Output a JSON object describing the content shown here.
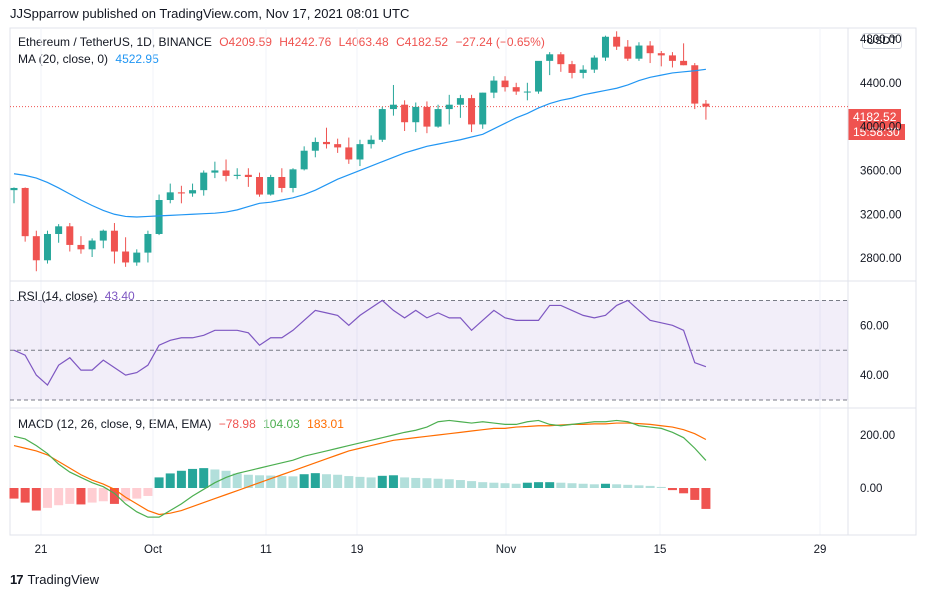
{
  "header": {
    "publisher": "JJSpparrow published on TradingView.com, Nov 17, 2021 08:01 UTC"
  },
  "legend": {
    "symbol": "Ethereum / TetherUS, 1D, BINANCE",
    "o": "O4209.59",
    "h": "H4242.76",
    "l": "L4063.48",
    "c": "C4182.52",
    "chg": "−27.24 (−0.65%)",
    "ma_label": "MA (20, close, 0)",
    "ma_value": "4522.95",
    "rsi_label": "RSI (14, close)",
    "rsi_value": "43.40",
    "macd_label": "MACD (12, 26, close, 9, EMA, EMA)",
    "macd_hist": "−78.98",
    "macd_line": "104.03",
    "macd_signal": "183.01"
  },
  "currency": "USDT",
  "price_tag": {
    "price": "4182.52",
    "countdown": "15:58:30"
  },
  "footer": {
    "brand": "TradingView",
    "logo": "17"
  },
  "colors": {
    "up": "#26a69a",
    "down": "#ef5350",
    "ma": "#2196f3",
    "rsi": "#7e57c2",
    "macd": "#4caf50",
    "signal": "#ff6d00"
  },
  "chart_data": [
    {
      "type": "candlestick",
      "title": "Ethereum / TetherUS, 1D, BINANCE",
      "x_ticks": [
        "21",
        "Oct",
        "11",
        "19",
        "Nov",
        "15",
        "29"
      ],
      "y_ticks": [
        "2800.00",
        "3200.00",
        "3600.00",
        "4000.00",
        "4400.00",
        "4800.00"
      ],
      "ylim": [
        2600,
        4900
      ],
      "ohlc": [
        [
          3420,
          3445,
          3300,
          3440
        ],
        [
          3440,
          3445,
          2950,
          3000
        ],
        [
          3000,
          3050,
          2680,
          2780
        ],
        [
          2780,
          3050,
          2750,
          3020
        ],
        [
          3020,
          3110,
          2940,
          3090
        ],
        [
          3090,
          3120,
          2860,
          2920
        ],
        [
          2920,
          3000,
          2840,
          2880
        ],
        [
          2880,
          2980,
          2810,
          2960
        ],
        [
          2960,
          3060,
          2890,
          3050
        ],
        [
          3050,
          3120,
          2750,
          2860
        ],
        [
          2860,
          2990,
          2720,
          2760
        ],
        [
          2760,
          2880,
          2730,
          2850
        ],
        [
          2850,
          3050,
          2760,
          3020
        ],
        [
          3020,
          3380,
          3010,
          3330
        ],
        [
          3330,
          3480,
          3300,
          3400
        ],
        [
          3400,
          3460,
          3300,
          3390
        ],
        [
          3390,
          3480,
          3360,
          3420
        ],
        [
          3420,
          3600,
          3370,
          3580
        ],
        [
          3580,
          3680,
          3530,
          3600
        ],
        [
          3600,
          3700,
          3500,
          3550
        ],
        [
          3550,
          3620,
          3520,
          3560
        ],
        [
          3560,
          3620,
          3450,
          3540
        ],
        [
          3540,
          3580,
          3360,
          3380
        ],
        [
          3380,
          3560,
          3370,
          3540
        ],
        [
          3540,
          3620,
          3400,
          3440
        ],
        [
          3440,
          3620,
          3400,
          3610
        ],
        [
          3610,
          3820,
          3600,
          3780
        ],
        [
          3780,
          3900,
          3720,
          3860
        ],
        [
          3860,
          3990,
          3800,
          3840
        ],
        [
          3840,
          3890,
          3760,
          3810
        ],
        [
          3810,
          3900,
          3660,
          3700
        ],
        [
          3700,
          3880,
          3640,
          3840
        ],
        [
          3840,
          3920,
          3800,
          3880
        ],
        [
          3880,
          4180,
          3860,
          4160
        ],
        [
          4160,
          4380,
          4100,
          4200
        ],
        [
          4200,
          4240,
          3960,
          4040
        ],
        [
          4040,
          4220,
          3950,
          4180
        ],
        [
          4180,
          4230,
          3940,
          4000
        ],
        [
          4000,
          4200,
          3990,
          4160
        ],
        [
          4160,
          4290,
          4020,
          4200
        ],
        [
          4200,
          4290,
          4080,
          4260
        ],
        [
          4260,
          4290,
          3950,
          4020
        ],
        [
          4020,
          4310,
          3980,
          4310
        ],
        [
          4310,
          4460,
          4260,
          4420
        ],
        [
          4420,
          4460,
          4320,
          4360
        ],
        [
          4360,
          4400,
          4290,
          4320
        ],
        [
          4320,
          4400,
          4240,
          4320
        ],
        [
          4320,
          4590,
          4300,
          4600
        ],
        [
          4600,
          4680,
          4470,
          4660
        ],
        [
          4660,
          4680,
          4500,
          4570
        ],
        [
          4570,
          4600,
          4440,
          4490
        ],
        [
          4490,
          4560,
          4440,
          4520
        ],
        [
          4520,
          4650,
          4490,
          4630
        ],
        [
          4630,
          4830,
          4600,
          4820
        ],
        [
          4820,
          4870,
          4700,
          4730
        ],
        [
          4730,
          4790,
          4600,
          4620
        ],
        [
          4620,
          4770,
          4600,
          4740
        ],
        [
          4740,
          4780,
          4580,
          4670
        ],
        [
          4670,
          4690,
          4550,
          4650
        ],
        [
          4650,
          4680,
          4540,
          4600
        ],
        [
          4600,
          4760,
          4560,
          4560
        ],
        [
          4560,
          4580,
          4160,
          4210
        ],
        [
          4209.59,
          4242.76,
          4063.48,
          4182.52
        ]
      ],
      "ma": [
        3570,
        3555,
        3530,
        3490,
        3440,
        3385,
        3330,
        3280,
        3235,
        3200,
        3180,
        3175,
        3180,
        3185,
        3190,
        3195,
        3200,
        3205,
        3210,
        3220,
        3240,
        3270,
        3300,
        3310,
        3330,
        3350,
        3380,
        3420,
        3470,
        3520,
        3560,
        3600,
        3640,
        3680,
        3720,
        3760,
        3790,
        3820,
        3840,
        3860,
        3880,
        3905,
        3930,
        3980,
        4030,
        4080,
        4120,
        4170,
        4210,
        4240,
        4260,
        4290,
        4310,
        4330,
        4350,
        4380,
        4420,
        4450,
        4470,
        4490,
        4500,
        4510,
        4522.95
      ]
    },
    {
      "type": "line",
      "title": "RSI (14, close)",
      "y_ticks": [
        "40.00",
        "60.00"
      ],
      "ylim": [
        30,
        75
      ],
      "bands": [
        70,
        50,
        30
      ],
      "values": [
        50,
        48,
        40,
        36,
        44,
        47,
        42,
        42,
        46,
        43,
        40,
        41,
        44,
        52,
        54,
        55,
        55,
        56,
        58,
        58,
        58,
        57,
        52,
        55,
        55,
        58,
        62,
        66,
        65,
        64,
        60,
        64,
        67,
        70,
        66,
        63,
        66,
        63,
        65,
        63,
        63,
        58,
        62,
        66,
        63,
        62,
        62,
        62,
        68,
        68,
        66,
        64,
        63,
        64,
        68,
        70,
        66,
        62,
        61,
        60,
        58,
        45,
        43.4
      ]
    },
    {
      "type": "bar+line",
      "title": "MACD (12, 26, close, 9, EMA, EMA)",
      "y_ticks": [
        "0.00",
        "200.00"
      ],
      "ylim": [
        -150,
        260
      ],
      "histogram": [
        -40,
        -55,
        -85,
        -75,
        -65,
        -60,
        -62,
        -55,
        -50,
        -60,
        -50,
        -40,
        -30,
        40,
        55,
        65,
        72,
        75,
        70,
        65,
        55,
        50,
        48,
        47,
        45,
        44,
        52,
        56,
        52,
        50,
        45,
        42,
        40,
        46,
        48,
        40,
        38,
        37,
        35,
        33,
        30,
        26,
        22,
        20,
        18,
        16,
        20,
        22,
        22,
        20,
        18,
        16,
        14,
        16,
        14,
        12,
        10,
        8,
        4,
        -8,
        -20,
        -45,
        -78.98
      ],
      "macd": [
        195,
        185,
        160,
        130,
        90,
        60,
        40,
        20,
        5,
        -20,
        -60,
        -90,
        -110,
        -110,
        -85,
        -60,
        -30,
        -5,
        20,
        40,
        55,
        65,
        75,
        85,
        95,
        105,
        120,
        130,
        140,
        150,
        160,
        170,
        180,
        190,
        200,
        210,
        218,
        230,
        250,
        255,
        250,
        245,
        250,
        245,
        240,
        240,
        250,
        255,
        240,
        235,
        240,
        245,
        250,
        250,
        255,
        250,
        235,
        230,
        225,
        210,
        190,
        150,
        104.03
      ],
      "signal": [
        160,
        150,
        140,
        125,
        100,
        75,
        50,
        30,
        15,
        -5,
        -35,
        -60,
        -85,
        -100,
        -95,
        -85,
        -70,
        -55,
        -40,
        -25,
        -10,
        5,
        20,
        35,
        50,
        65,
        80,
        95,
        110,
        125,
        140,
        150,
        160,
        170,
        180,
        185,
        190,
        195,
        200,
        205,
        210,
        215,
        220,
        225,
        225,
        230,
        232,
        235,
        235,
        238,
        240,
        240,
        242,
        242,
        245,
        245,
        243,
        240,
        235,
        230,
        220,
        205,
        183.01
      ]
    }
  ]
}
